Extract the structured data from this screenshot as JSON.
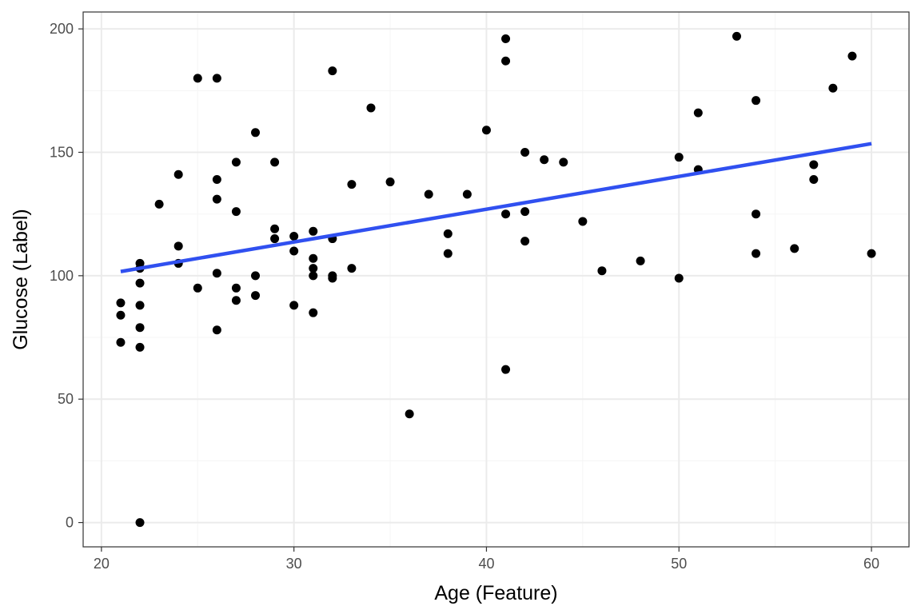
{
  "chart_data": {
    "type": "scatter",
    "title": "",
    "xlabel": "Age (Feature)",
    "ylabel": "Glucose (Label)",
    "xlim": [
      19.05,
      61.95
    ],
    "ylim": [
      -9.85,
      206.85
    ],
    "x_ticks": [
      20,
      30,
      40,
      50,
      60
    ],
    "y_ticks": [
      0,
      50,
      100,
      150,
      200
    ],
    "grid": true,
    "legend": "none",
    "colors": {
      "points": "#000000",
      "trend": "#3050f0",
      "grid_major": "#ebebeb",
      "grid_minor": "#f5f5f5",
      "border": "#333333"
    },
    "points": [
      {
        "x": 21,
        "y": 89
      },
      {
        "x": 21,
        "y": 84
      },
      {
        "x": 21,
        "y": 73
      },
      {
        "x": 22,
        "y": 105
      },
      {
        "x": 22,
        "y": 103
      },
      {
        "x": 22,
        "y": 97
      },
      {
        "x": 22,
        "y": 88
      },
      {
        "x": 22,
        "y": 79
      },
      {
        "x": 22,
        "y": 71
      },
      {
        "x": 22,
        "y": 0
      },
      {
        "x": 23,
        "y": 129
      },
      {
        "x": 24,
        "y": 141
      },
      {
        "x": 24,
        "y": 112
      },
      {
        "x": 24,
        "y": 105
      },
      {
        "x": 25,
        "y": 180
      },
      {
        "x": 25,
        "y": 95
      },
      {
        "x": 26,
        "y": 180
      },
      {
        "x": 26,
        "y": 139
      },
      {
        "x": 26,
        "y": 131
      },
      {
        "x": 26,
        "y": 101
      },
      {
        "x": 26,
        "y": 78
      },
      {
        "x": 27,
        "y": 146
      },
      {
        "x": 27,
        "y": 126
      },
      {
        "x": 27,
        "y": 95
      },
      {
        "x": 27,
        "y": 90
      },
      {
        "x": 28,
        "y": 158
      },
      {
        "x": 28,
        "y": 100
      },
      {
        "x": 28,
        "y": 92
      },
      {
        "x": 29,
        "y": 146
      },
      {
        "x": 29,
        "y": 119
      },
      {
        "x": 29,
        "y": 115
      },
      {
        "x": 30,
        "y": 116
      },
      {
        "x": 30,
        "y": 110
      },
      {
        "x": 30,
        "y": 88
      },
      {
        "x": 31,
        "y": 118
      },
      {
        "x": 31,
        "y": 107
      },
      {
        "x": 31,
        "y": 103
      },
      {
        "x": 31,
        "y": 100
      },
      {
        "x": 31,
        "y": 85
      },
      {
        "x": 32,
        "y": 183
      },
      {
        "x": 32,
        "y": 115
      },
      {
        "x": 32,
        "y": 100
      },
      {
        "x": 32,
        "y": 99
      },
      {
        "x": 33,
        "y": 137
      },
      {
        "x": 33,
        "y": 103
      },
      {
        "x": 34,
        "y": 168
      },
      {
        "x": 35,
        "y": 138
      },
      {
        "x": 36,
        "y": 44
      },
      {
        "x": 37,
        "y": 133
      },
      {
        "x": 38,
        "y": 117
      },
      {
        "x": 38,
        "y": 109
      },
      {
        "x": 39,
        "y": 133
      },
      {
        "x": 40,
        "y": 159
      },
      {
        "x": 41,
        "y": 196
      },
      {
        "x": 41,
        "y": 187
      },
      {
        "x": 41,
        "y": 125
      },
      {
        "x": 41,
        "y": 62
      },
      {
        "x": 42,
        "y": 150
      },
      {
        "x": 42,
        "y": 126
      },
      {
        "x": 42,
        "y": 114
      },
      {
        "x": 43,
        "y": 147
      },
      {
        "x": 44,
        "y": 146
      },
      {
        "x": 45,
        "y": 122
      },
      {
        "x": 46,
        "y": 102
      },
      {
        "x": 48,
        "y": 106
      },
      {
        "x": 50,
        "y": 148
      },
      {
        "x": 50,
        "y": 99
      },
      {
        "x": 51,
        "y": 166
      },
      {
        "x": 51,
        "y": 143
      },
      {
        "x": 53,
        "y": 197
      },
      {
        "x": 54,
        "y": 171
      },
      {
        "x": 54,
        "y": 125
      },
      {
        "x": 54,
        "y": 109
      },
      {
        "x": 56,
        "y": 111
      },
      {
        "x": 57,
        "y": 145
      },
      {
        "x": 57,
        "y": 139
      },
      {
        "x": 58,
        "y": 176
      },
      {
        "x": 59,
        "y": 189
      },
      {
        "x": 60,
        "y": 109
      }
    ],
    "trend_line": {
      "x": [
        21,
        60
      ],
      "y": [
        101.7,
        153.5
      ]
    }
  }
}
